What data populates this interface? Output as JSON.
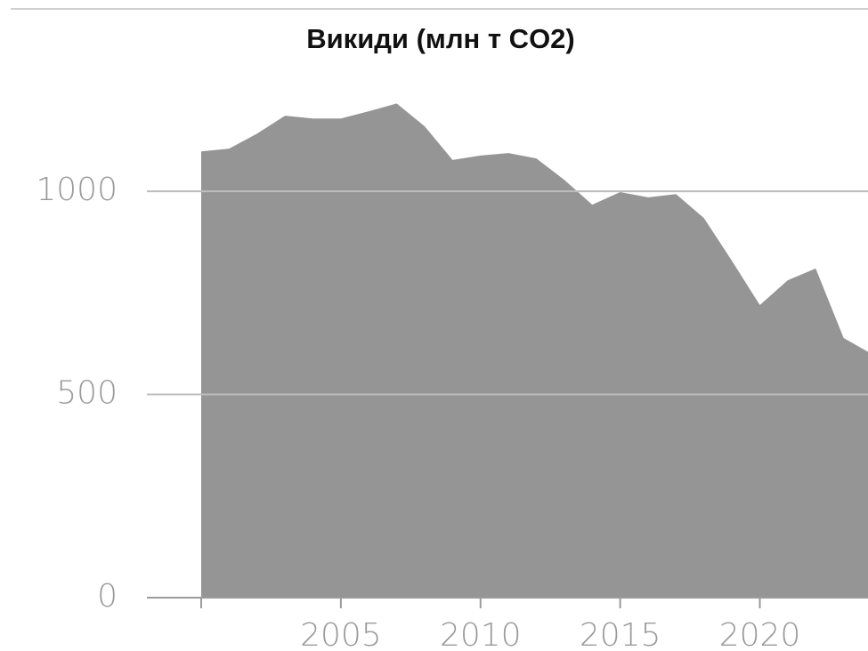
{
  "chart_data": {
    "type": "area",
    "title": "Викиди (млн т CO2)",
    "x": [
      2000,
      2001,
      2002,
      2003,
      2004,
      2005,
      2006,
      2007,
      2008,
      2009,
      2010,
      2011,
      2012,
      2013,
      2014,
      2015,
      2016,
      2017,
      2018,
      2019,
      2020,
      2021,
      2022,
      2023,
      2024
    ],
    "values": [
      1098,
      1105,
      1142,
      1186,
      1179,
      1179,
      1197,
      1216,
      1160,
      1077,
      1088,
      1094,
      1081,
      1028,
      967,
      998,
      985,
      993,
      934,
      829,
      720,
      781,
      810,
      639,
      600
    ],
    "color": "#959595",
    "xlim": [
      2000,
      2024
    ],
    "xticks": [
      2005,
      2010,
      2015,
      2020
    ],
    "ylim": [
      0,
      1300
    ],
    "yticks": [
      0,
      500,
      1000
    ],
    "grid": true
  }
}
